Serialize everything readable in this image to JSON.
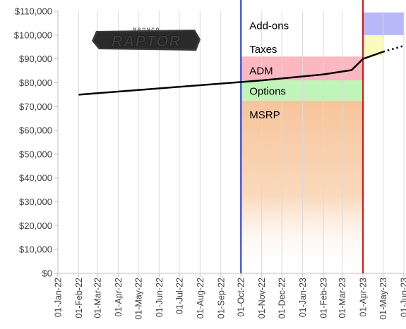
{
  "chart_data": {
    "type": "line",
    "title": "",
    "xlabel": "",
    "ylabel": "",
    "ylim": [
      0,
      110000
    ],
    "y_ticks": [
      0,
      10000,
      20000,
      30000,
      40000,
      50000,
      60000,
      70000,
      80000,
      90000,
      100000,
      110000
    ],
    "y_tick_labels": [
      "$0",
      "$10,000",
      "$20,000",
      "$30,000",
      "$40,000",
      "$50,000",
      "$60,000",
      "$70,000",
      "$80,000",
      "$90,000",
      "$100,000",
      "$110,000"
    ],
    "x_range": [
      "2022-01-01",
      "2023-06-01"
    ],
    "x_ticks": [
      "2022-01-01",
      "2022-02-01",
      "2022-03-01",
      "2022-04-01",
      "2022-05-01",
      "2022-06-01",
      "2022-07-01",
      "2022-08-01",
      "2022-09-01",
      "2022-10-01",
      "2022-11-01",
      "2022-12-01",
      "2023-01-01",
      "2023-02-01",
      "2023-03-01",
      "2023-04-01",
      "2023-05-01",
      "2023-06-01"
    ],
    "x_tick_labels": [
      "01-Jan-22",
      "01-Feb-22",
      "01-Mar-22",
      "01-Apr-22",
      "01-May-22",
      "01-Jun-22",
      "01-Jul-22",
      "01-Aug-22",
      "01-Sep-22",
      "01-Oct-22",
      "01-Nov-22",
      "01-Dec-22",
      "01-Jan-23",
      "01-Feb-23",
      "01-Mar-23",
      "01-Apr-23",
      "01-May-23",
      "01-Jun-23"
    ],
    "grid": "vertical",
    "series": [
      {
        "color": "#000000",
        "style": "solid",
        "points": [
          {
            "x": "2022-02-01",
            "y": 75000
          },
          {
            "x": "2022-11-01",
            "y": 81000
          },
          {
            "x": "2023-02-01",
            "y": 83500
          },
          {
            "x": "2023-03-15",
            "y": 85300
          },
          {
            "x": "2023-04-01",
            "y": 90000
          },
          {
            "x": "2023-05-01",
            "y": 93000
          }
        ]
      },
      {
        "color": "#000000",
        "style": "dotted",
        "points": [
          {
            "x": "2023-05-01",
            "y": 93000
          },
          {
            "x": "2023-06-01",
            "y": 95500
          }
        ]
      }
    ],
    "vertical_lines": [
      {
        "x": "2022-10-01",
        "color": "#2233cc"
      },
      {
        "x": "2023-04-01",
        "color": "#cc1111"
      }
    ],
    "bands": [
      {
        "label": "MSRP",
        "x_start": "2022-10-01",
        "x_end": "2023-04-01",
        "y_from": 0,
        "y_to": 72500,
        "color": "#f7c49a",
        "gradient": true
      },
      {
        "label": "Options",
        "x_start": "2022-10-01",
        "x_end": "2023-04-01",
        "y_from": 72500,
        "y_to": 81000,
        "color": "#bff5b8",
        "gradient": false
      },
      {
        "label": "ADM",
        "x_start": "2022-10-01",
        "x_end": "2023-04-01",
        "y_from": 81000,
        "y_to": 91000,
        "color": "#fbb8c0",
        "gradient": false
      },
      {
        "label": "",
        "x_start": "2023-04-01",
        "x_end": "2023-05-01",
        "y_from": 91000,
        "y_to": 100000,
        "color": "#fbfbc0",
        "gradient": false
      },
      {
        "label": "",
        "x_start": "2023-04-01",
        "x_end": "2023-06-01",
        "y_from": 100000,
        "y_to": 109500,
        "color": "#b8b8f8",
        "gradient": false
      }
    ],
    "band_labels": [
      {
        "text": "Add-ons",
        "x": "2022-10-01",
        "y": 104000
      },
      {
        "text": "Taxes",
        "x": "2022-10-01",
        "y": 94000
      },
      {
        "text": "ADM",
        "x": "2022-10-01",
        "y": 85000
      },
      {
        "text": "Options",
        "x": "2022-10-01",
        "y": 76500
      },
      {
        "text": "MSRP",
        "x": "2022-10-01",
        "y": 66500
      }
    ]
  },
  "logo": {
    "top_text": "BRONCO",
    "main_text": "RAPTOR"
  }
}
